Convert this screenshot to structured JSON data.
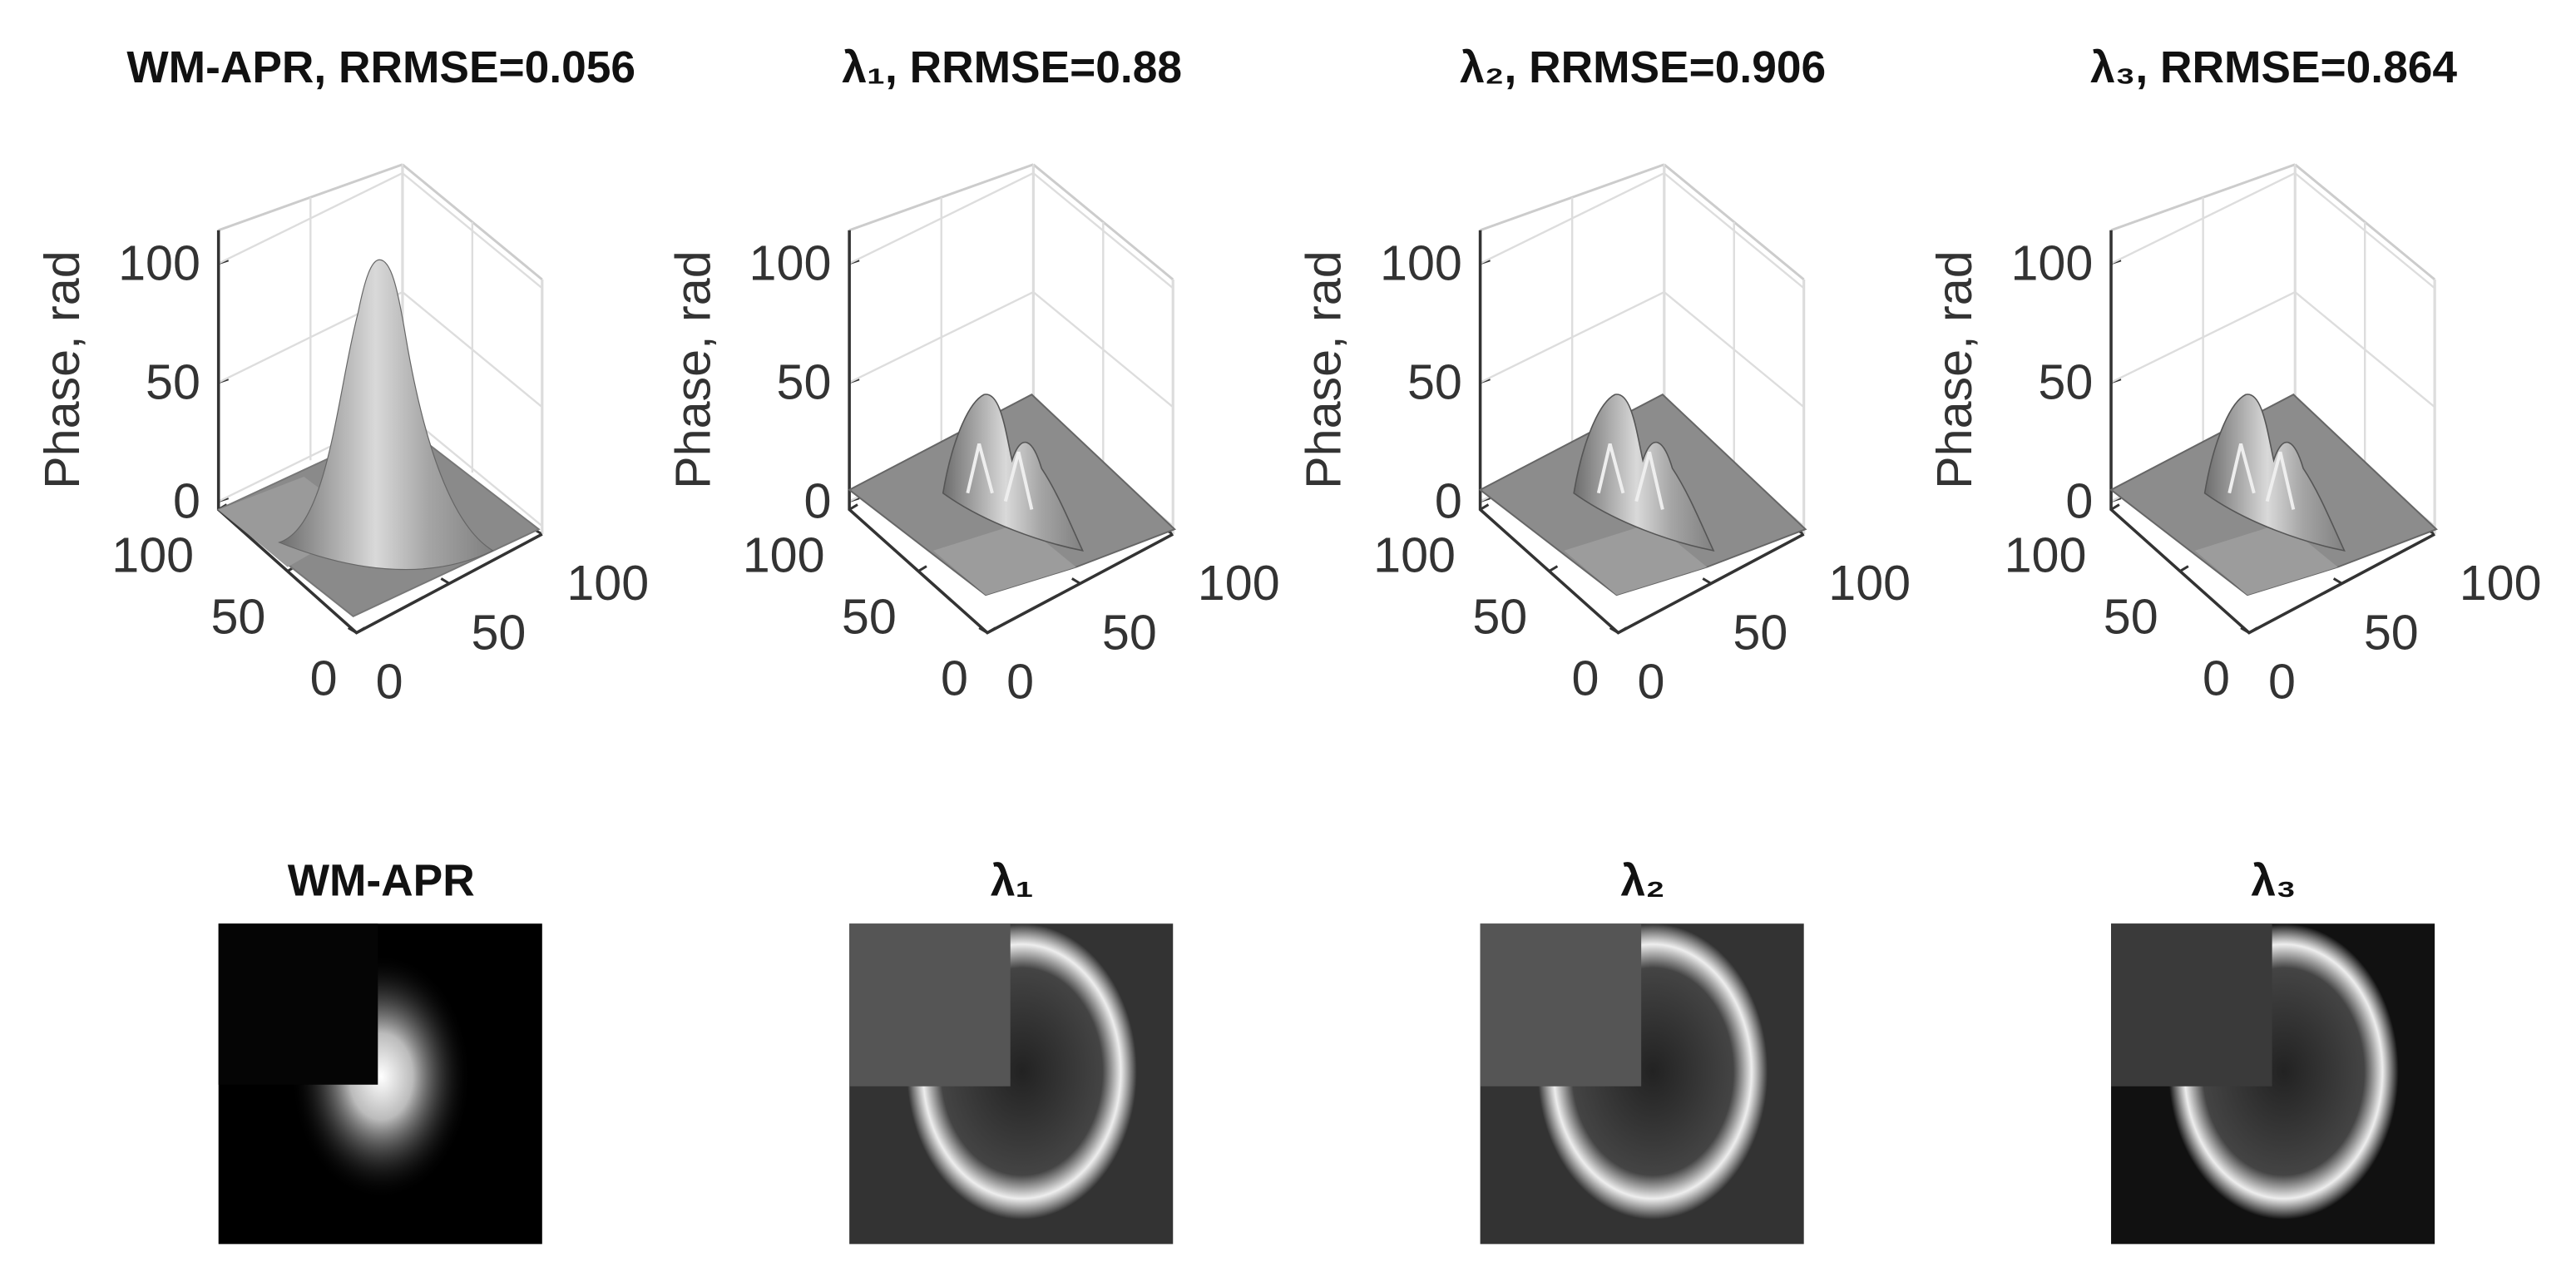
{
  "chart_data": [
    {
      "type": "surface",
      "title": "WM-APR, RRMSE=0.056",
      "zlabel": "Phase, rad",
      "zlim": [
        0,
        114
      ],
      "zticks": [
        0,
        50,
        100
      ],
      "xlim": [
        0,
        100
      ],
      "xticks": [
        0,
        50,
        100
      ],
      "ylim": [
        0,
        100
      ],
      "yticks": [
        0,
        50,
        100
      ],
      "grid": true
    },
    {
      "type": "surface",
      "title": "λ₁, RRMSE=0.88",
      "zlabel": "Phase, rad",
      "zlim": [
        0,
        114
      ],
      "zticks": [
        0,
        50,
        100
      ],
      "xlim": [
        0,
        100
      ],
      "xticks": [
        0,
        50,
        100
      ],
      "ylim": [
        0,
        100
      ],
      "yticks": [
        0,
        50,
        100
      ],
      "grid": true
    },
    {
      "type": "surface",
      "title": "λ₂, RRMSE=0.906",
      "zlabel": "Phase, rad",
      "zlim": [
        0,
        114
      ],
      "zticks": [
        0,
        50,
        100
      ],
      "xlim": [
        0,
        100
      ],
      "xticks": [
        0,
        50,
        100
      ],
      "ylim": [
        0,
        100
      ],
      "yticks": [
        0,
        50,
        100
      ],
      "grid": true
    },
    {
      "type": "surface",
      "title": "λ₃, RRMSE=0.864",
      "zlabel": "Phase, rad",
      "zlim": [
        0,
        114
      ],
      "zticks": [
        0,
        50,
        100
      ],
      "xlim": [
        0,
        100
      ],
      "xticks": [
        0,
        50,
        100
      ],
      "ylim": [
        0,
        100
      ],
      "yticks": [
        0,
        50,
        100
      ],
      "grid": true
    },
    {
      "type": "image",
      "title": "WM-APR"
    },
    {
      "type": "image",
      "title": "λ₁"
    },
    {
      "type": "image",
      "title": "λ₂"
    },
    {
      "type": "image",
      "title": "λ₃"
    }
  ]
}
